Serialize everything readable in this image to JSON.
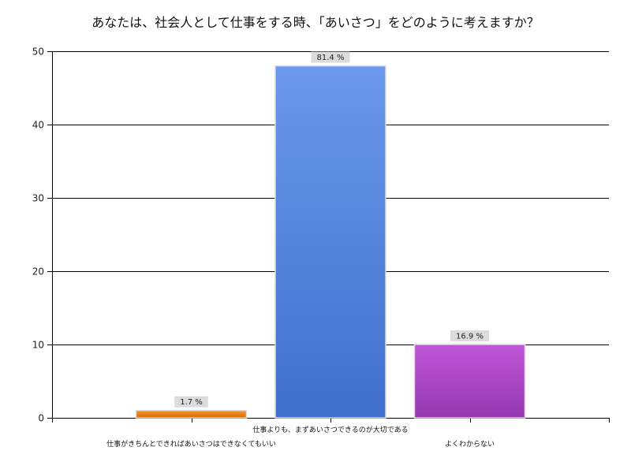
{
  "chart_data": {
    "type": "bar",
    "title": "あなたは、社会人として仕事をする時、「あいさつ」をどのように考えますか？",
    "xlabel": "",
    "ylabel": "",
    "ylim": [
      0,
      50
    ],
    "yticks": [
      0,
      10,
      20,
      30,
      40,
      50
    ],
    "grid": true,
    "categories": [
      "仕事がきちんとできればあいさつはできなくてもいい",
      "仕事よりも、まずあいさつできるのが大切である",
      "よくわからない"
    ],
    "values": [
      1,
      48,
      10
    ],
    "data_labels": [
      "1.7 %",
      "81.4 %",
      "16.9 %"
    ],
    "colors": [
      "#e8780c",
      "#4f80d8",
      "#a640c0"
    ]
  }
}
